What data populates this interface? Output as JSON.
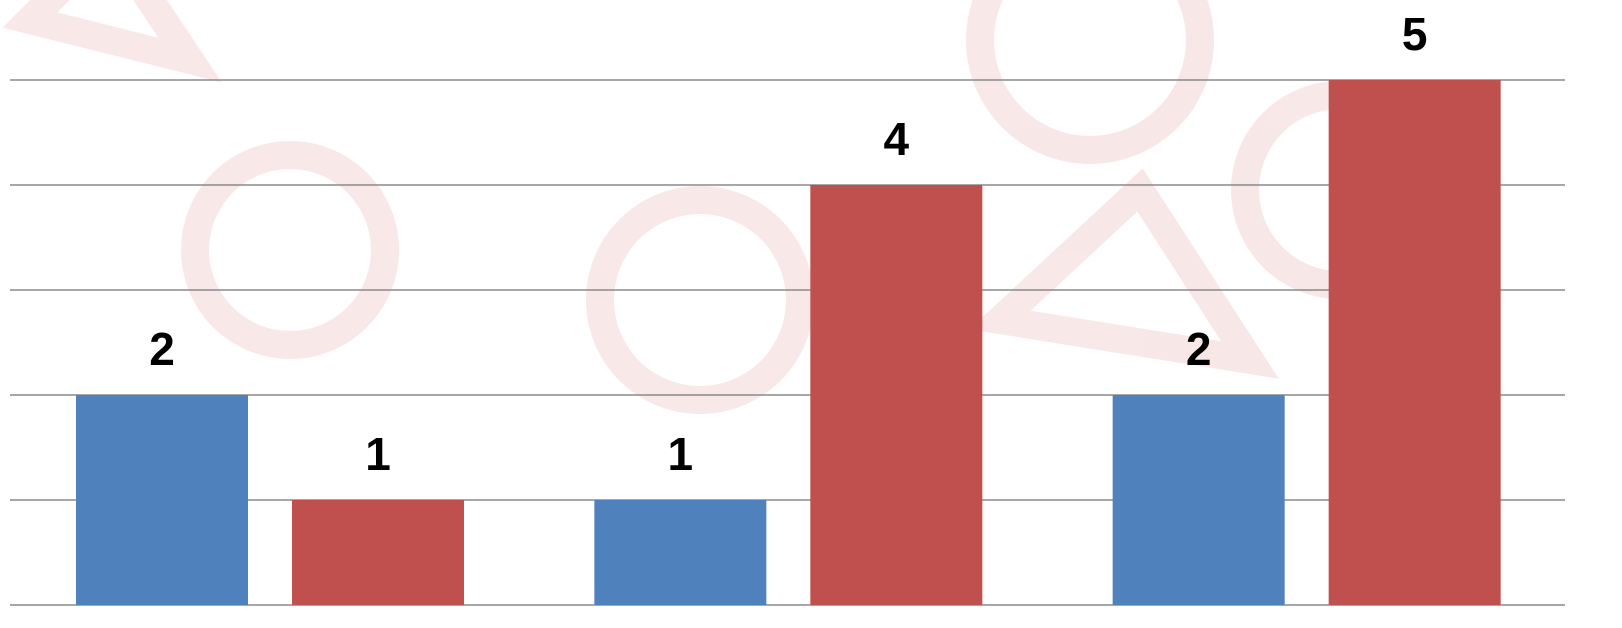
{
  "chart_data": {
    "type": "bar",
    "categories": [
      null,
      null,
      null
    ],
    "series": [
      {
        "color": "#4f81bd",
        "values": [
          2,
          1,
          2
        ]
      },
      {
        "color": "#c0504d",
        "values": [
          1,
          4,
          5
        ]
      }
    ],
    "ylim": [
      0,
      5
    ],
    "yticks": [
      1,
      2,
      3,
      4,
      5
    ],
    "grid": true
  }
}
